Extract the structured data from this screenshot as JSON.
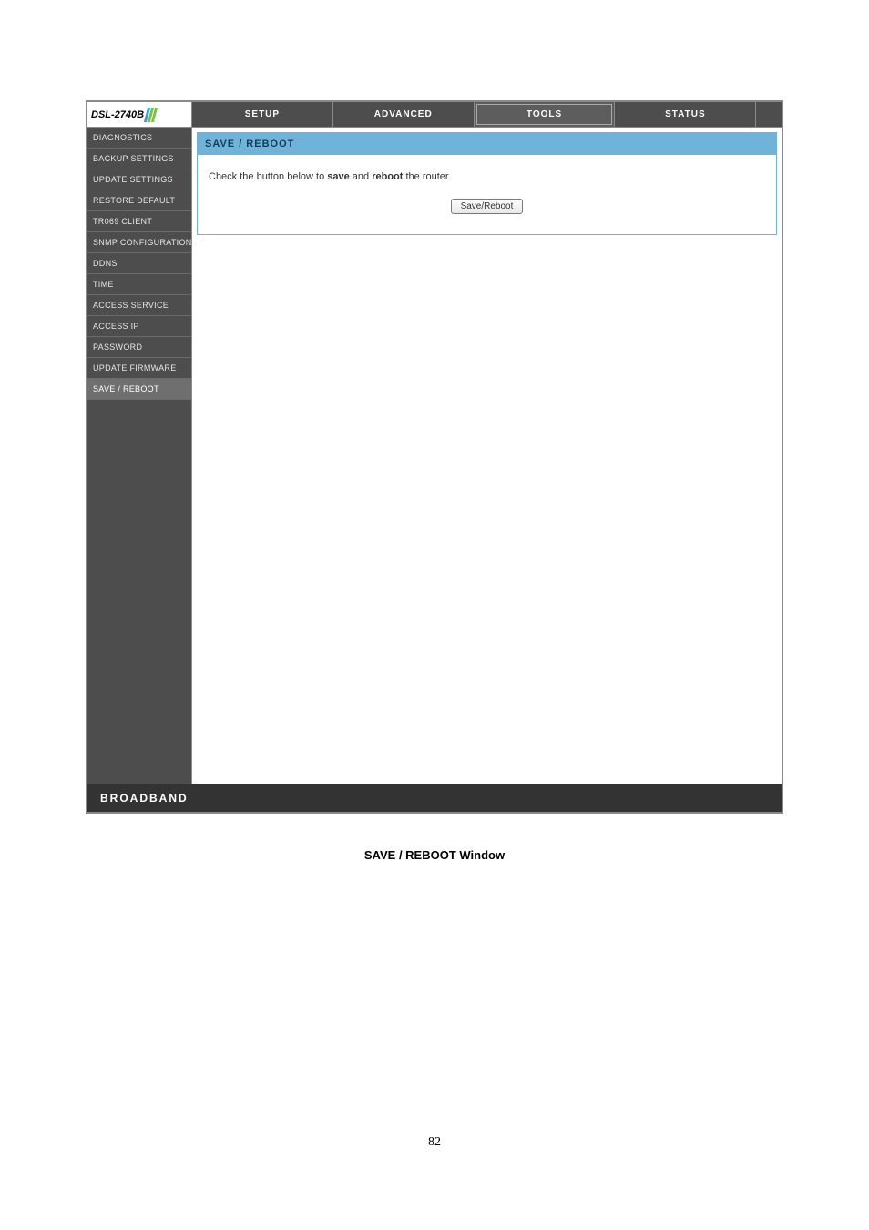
{
  "logo": {
    "model": "DSL-2740B",
    "slash_colors": [
      "#2aa5d9",
      "#7fbf3f",
      "#7fbf3f"
    ]
  },
  "tabs": [
    {
      "label": "SETUP",
      "active": false
    },
    {
      "label": "ADVANCED",
      "active": false
    },
    {
      "label": "TOOLS",
      "active": true
    },
    {
      "label": "STATUS",
      "active": false
    },
    {
      "label": "",
      "active": false
    }
  ],
  "sidebar": {
    "items": [
      {
        "label": "DIAGNOSTICS"
      },
      {
        "label": "BACKUP SETTINGS"
      },
      {
        "label": "UPDATE SETTINGS"
      },
      {
        "label": "RESTORE DEFAULT"
      },
      {
        "label": "TR069 CLIENT"
      },
      {
        "label": "SNMP CONFIGURATION"
      },
      {
        "label": "DDNS"
      },
      {
        "label": "TIME"
      },
      {
        "label": "ACCESS SERVICE"
      },
      {
        "label": "ACCESS IP"
      },
      {
        "label": "PASSWORD"
      },
      {
        "label": "UPDATE FIRMWARE"
      },
      {
        "label": "SAVE / REBOOT"
      }
    ],
    "active_index": 12
  },
  "panel": {
    "title": "SAVE / REBOOT",
    "instruction_pre": "Check the button below to ",
    "instruction_bold1": "save",
    "instruction_mid": " and ",
    "instruction_bold2": "reboot",
    "instruction_post": " the router.",
    "button_label": "Save/Reboot"
  },
  "footer": {
    "text": "BROADBAND"
  },
  "caption": "SAVE / REBOOT Window",
  "page_number": "82",
  "colors": {
    "frame_border": "#8a8a8a",
    "tab_bg": "#4d4d4d",
    "tab_active_bg": "#5d5d5d",
    "sidebar_bg": "#4d4d4d",
    "sidebar_divider": "#6a6a6a",
    "panel_accent": "#6fb4d8",
    "panel_title_text": "#153b5a",
    "footer_bg": "#333333"
  }
}
